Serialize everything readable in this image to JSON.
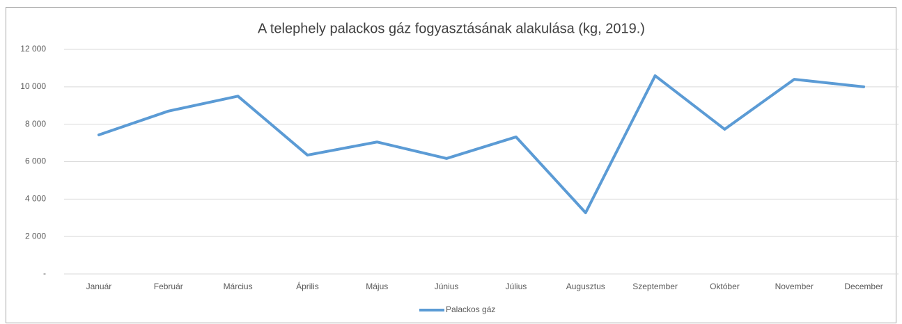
{
  "chart_data": {
    "type": "line",
    "title": "A telephely palackos gáz fogyasztásának alakulása (kg, 2019.)",
    "categories": [
      "Január",
      "Február",
      "Március",
      "Április",
      "Május",
      "Június",
      "Július",
      "Augusztus",
      "Szeptember",
      "Október",
      "November",
      "December"
    ],
    "series": [
      {
        "name": "Palackos gáz",
        "color": "#5b9bd5",
        "values": [
          7430,
          8700,
          9500,
          6350,
          7050,
          6170,
          7320,
          3270,
          10590,
          7730,
          10400,
          10000
        ]
      }
    ],
    "ylim": [
      0,
      12000
    ],
    "yticks": [
      {
        "value": 0,
        "label": "-"
      },
      {
        "value": 2000,
        "label": "2 000"
      },
      {
        "value": 4000,
        "label": "4 000"
      },
      {
        "value": 6000,
        "label": "6 000"
      },
      {
        "value": 8000,
        "label": "8 000"
      },
      {
        "value": 10000,
        "label": "10 000"
      },
      {
        "value": 12000,
        "label": "12 000"
      }
    ],
    "grid": true,
    "legend": "bottom"
  }
}
